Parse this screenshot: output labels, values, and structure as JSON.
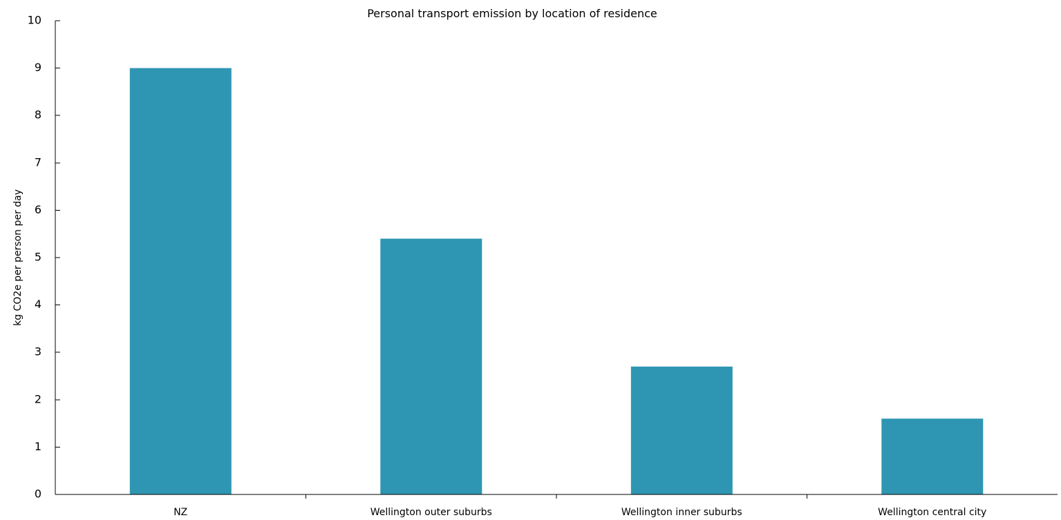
{
  "chart_data": {
    "type": "bar",
    "title": "Personal transport emission by location of residence",
    "xlabel": "",
    "ylabel": "kg CO2e per person per day",
    "categories": [
      "NZ",
      "Wellington outer suburbs",
      "Wellington inner suburbs",
      "Wellington central city"
    ],
    "values": [
      9.0,
      5.4,
      2.7,
      1.6
    ],
    "ylim": [
      0,
      10
    ],
    "yticks": [
      "0",
      "1",
      "2",
      "3",
      "4",
      "5",
      "6",
      "7",
      "8",
      "9",
      "10"
    ],
    "grid": false,
    "bar_color": "#2e96b2"
  }
}
